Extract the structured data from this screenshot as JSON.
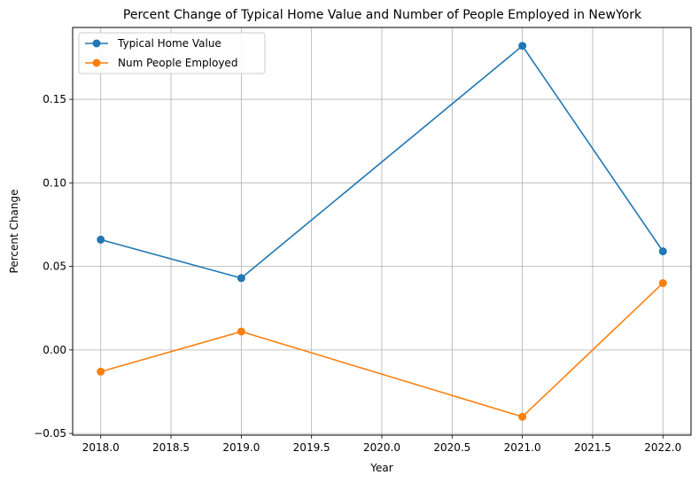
{
  "chart_data": {
    "type": "line",
    "title": "Percent Change of Typical Home Value and Number of People Employed in NewYork",
    "xlabel": "Year",
    "ylabel": "Percent Change",
    "x": [
      2018,
      2019,
      2021,
      2022
    ],
    "xlim": [
      2017.8,
      2022.2
    ],
    "ylim": [
      -0.051,
      0.193
    ],
    "xticks": [
      2018.0,
      2018.5,
      2019.0,
      2019.5,
      2020.0,
      2020.5,
      2021.0,
      2021.5,
      2022.0
    ],
    "xtick_labels": [
      "2018.0",
      "2018.5",
      "2019.0",
      "2019.5",
      "2020.0",
      "2020.5",
      "2021.0",
      "2021.5",
      "2022.0"
    ],
    "yticks": [
      -0.05,
      0.0,
      0.05,
      0.1,
      0.15
    ],
    "ytick_labels": [
      "−0.05",
      "0.00",
      "0.05",
      "0.10",
      "0.15"
    ],
    "grid": true,
    "legend_position": "top-left",
    "series": [
      {
        "name": "Typical Home Value",
        "color": "#1f77b4",
        "marker": "circle",
        "values": [
          0.066,
          0.043,
          0.182,
          0.059
        ]
      },
      {
        "name": "Num People Employed",
        "color": "#ff7f0e",
        "marker": "circle",
        "values": [
          -0.013,
          0.011,
          -0.04,
          0.04
        ]
      }
    ]
  }
}
